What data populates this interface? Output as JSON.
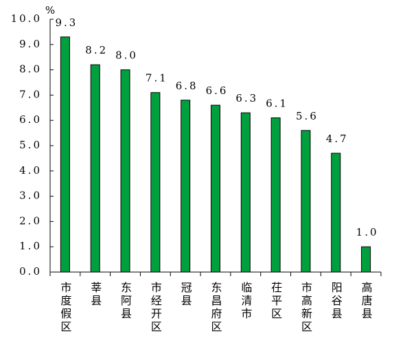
{
  "chart_data": {
    "type": "bar",
    "y_label": "%",
    "categories": [
      "市度假区",
      "莘县",
      "东阿县",
      "市经开区",
      "冠县",
      "东昌府区",
      "临清市",
      "茌平区",
      "市高新区",
      "阳谷县",
      "高唐县"
    ],
    "values": [
      9.3,
      8.2,
      8.0,
      7.1,
      6.8,
      6.6,
      6.3,
      6.1,
      5.6,
      4.7,
      1.0
    ],
    "value_labels": [
      "9.3",
      "8.2",
      "8.0",
      "7.1",
      "6.8",
      "6.6",
      "6.3",
      "6.1",
      "5.6",
      "4.7",
      "1.0"
    ],
    "color": "#00a03e",
    "ylim": [
      0,
      10
    ],
    "yticks": [
      {
        "value": 0,
        "label": "0.0"
      },
      {
        "value": 1,
        "label": "1.0"
      },
      {
        "value": 2,
        "label": "2.0"
      },
      {
        "value": 3,
        "label": "3.0"
      },
      {
        "value": 4,
        "label": "4.0"
      },
      {
        "value": 5,
        "label": "5.0"
      },
      {
        "value": 6,
        "label": "6.0"
      },
      {
        "value": 7,
        "label": "7.0"
      },
      {
        "value": 8,
        "label": "8.0"
      },
      {
        "value": 9,
        "label": "9.0"
      },
      {
        "value": 10,
        "label": "10.0"
      }
    ]
  }
}
